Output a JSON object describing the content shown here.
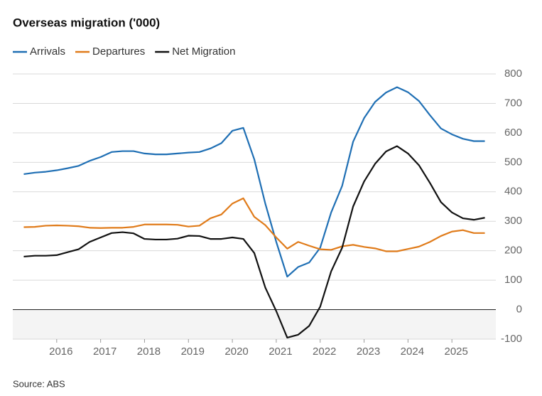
{
  "chart_data": {
    "type": "line",
    "title": "Overseas migration ('000)",
    "source": "Source: ABS",
    "x": [
      2015.25,
      2015.5,
      2015.75,
      2016,
      2016.25,
      2016.5,
      2016.75,
      2017,
      2017.25,
      2017.5,
      2017.75,
      2018,
      2018.25,
      2018.5,
      2018.75,
      2019,
      2019.25,
      2019.5,
      2019.75,
      2020,
      2020.25,
      2020.5,
      2020.75,
      2021,
      2021.25,
      2021.5,
      2021.75,
      2022,
      2022.25,
      2022.5,
      2022.75,
      2023,
      2023.25,
      2023.5,
      2023.75,
      2024,
      2024.25,
      2024.5,
      2024.75,
      2025,
      2025.25,
      2025.5,
      2025.75
    ],
    "series": [
      {
        "name": "Arrivals",
        "color": "#1f6fb4",
        "values": [
          460,
          465,
          468,
          473,
          480,
          488,
          505,
          518,
          535,
          538,
          538,
          530,
          527,
          527,
          530,
          533,
          535,
          547,
          565,
          607,
          617,
          510,
          360,
          230,
          112,
          145,
          160,
          210,
          330,
          420,
          570,
          650,
          705,
          737,
          755,
          738,
          708,
          660,
          615,
          595,
          580,
          572,
          572
        ]
      },
      {
        "name": "Departures",
        "color": "#e07b1a",
        "values": [
          280,
          281,
          285,
          286,
          285,
          283,
          278,
          277,
          278,
          278,
          281,
          289,
          289,
          289,
          288,
          282,
          285,
          310,
          323,
          360,
          378,
          315,
          287,
          245,
          207,
          230,
          217,
          205,
          203,
          215,
          220,
          213,
          208,
          198,
          198,
          206,
          214,
          230,
          250,
          265,
          270,
          260,
          260
        ]
      },
      {
        "name": "Net Migration",
        "color": "#111111",
        "values": [
          180,
          183,
          183,
          185,
          195,
          205,
          230,
          245,
          260,
          263,
          259,
          240,
          238,
          238,
          241,
          251,
          250,
          240,
          240,
          245,
          240,
          192,
          75,
          -5,
          -95,
          -85,
          -55,
          10,
          130,
          210,
          350,
          435,
          495,
          537,
          555,
          530,
          490,
          430,
          365,
          330,
          310,
          305,
          312
        ]
      }
    ],
    "xlim": [
      2015,
      2026
    ],
    "xticks": [
      2016,
      2017,
      2018,
      2019,
      2020,
      2021,
      2022,
      2023,
      2024,
      2025
    ],
    "ylim": [
      -100,
      800
    ],
    "yticks": [
      -100,
      0,
      100,
      200,
      300,
      400,
      500,
      600,
      700,
      800
    ],
    "grid": true
  }
}
